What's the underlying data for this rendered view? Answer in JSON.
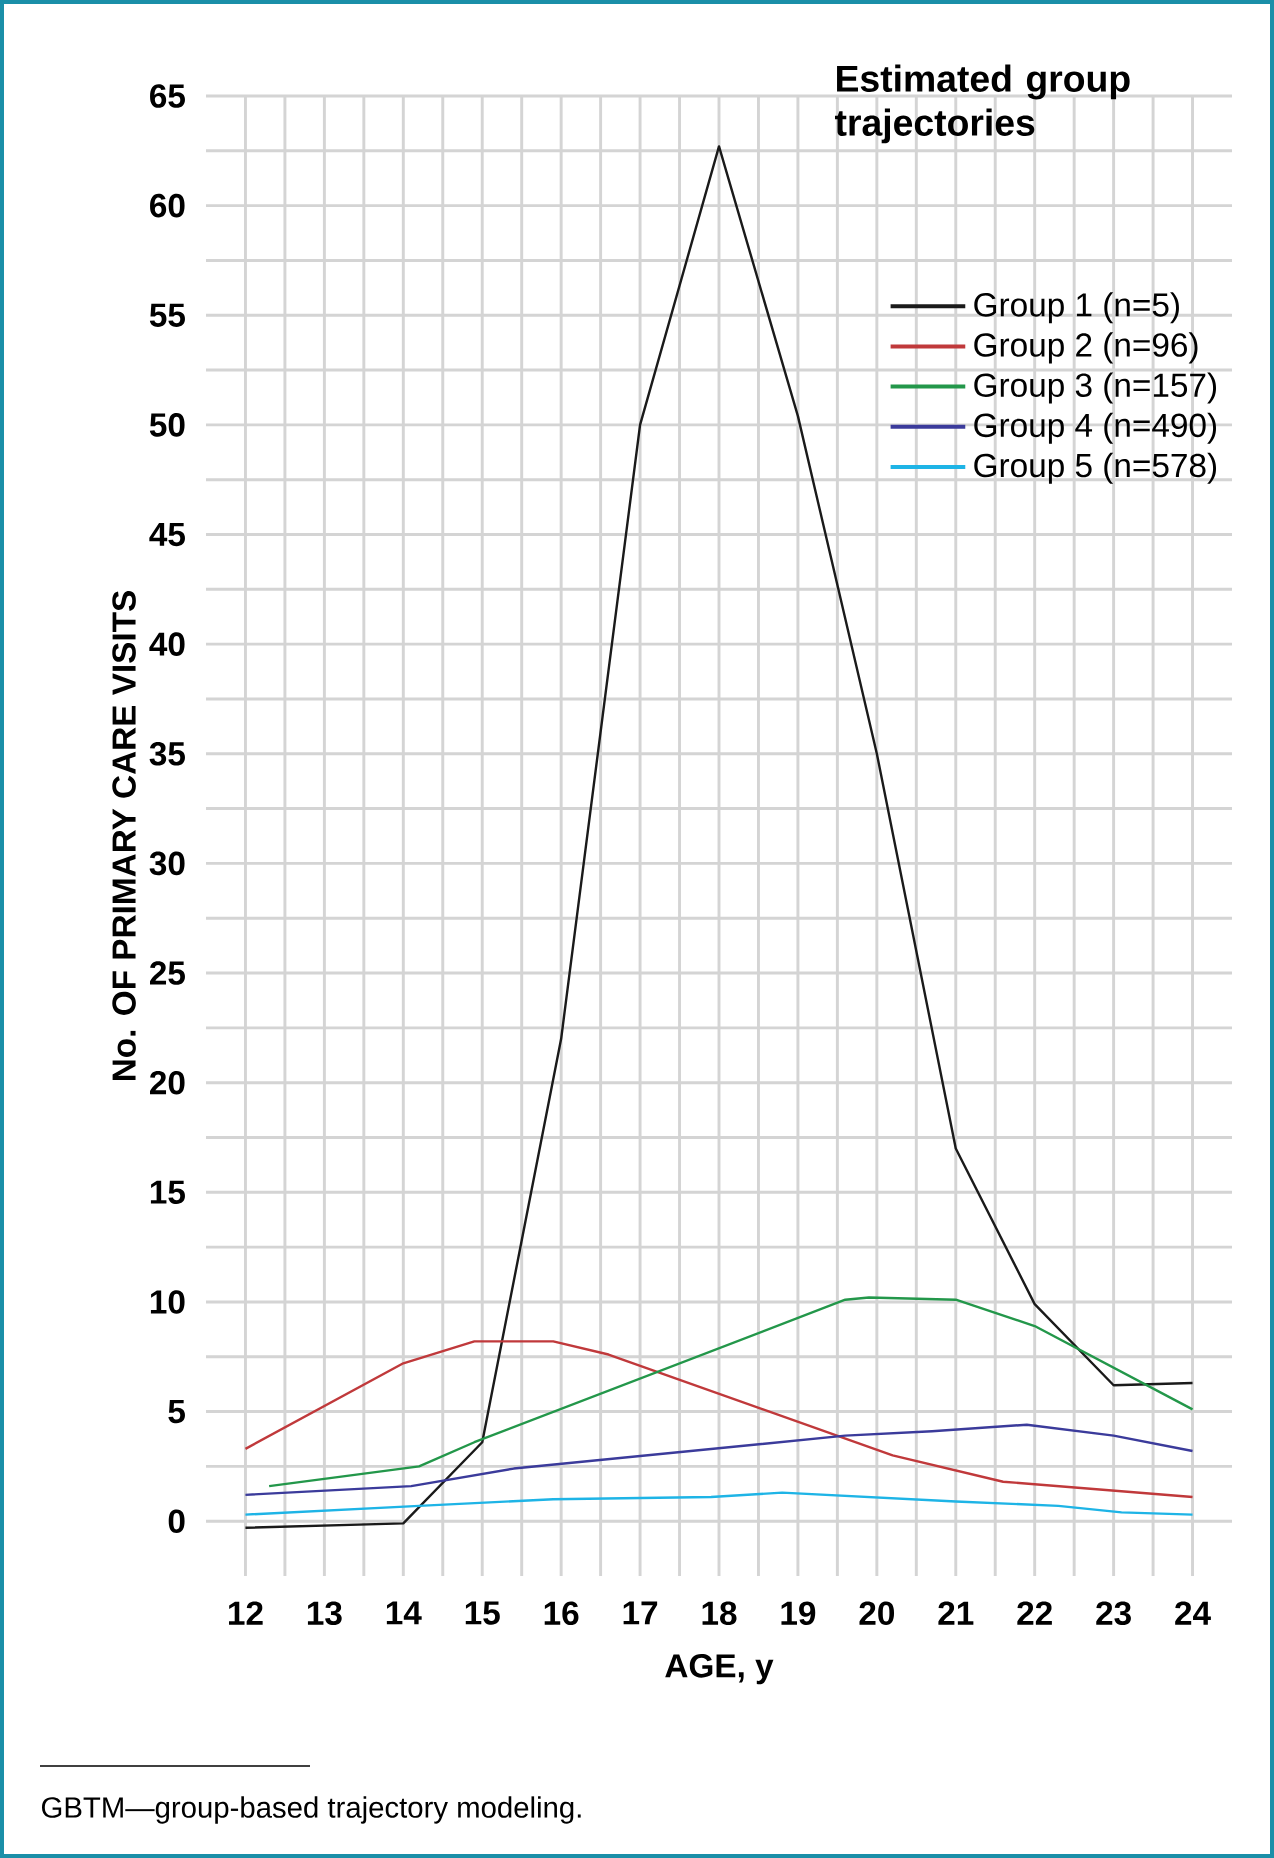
{
  "chart_data": {
    "type": "line",
    "xlabel": "AGE, y",
    "ylabel": "No. OF PRIMARY CARE VISITS",
    "legend_title": "Estimated group trajectories",
    "annotations": [
      "GBTM—group-based trajectory modeling."
    ],
    "xlim": [
      11.5,
      24.5
    ],
    "ylim": [
      -2.5,
      65
    ],
    "xticks": [
      12,
      13,
      14,
      15,
      16,
      17,
      18,
      19,
      20,
      21,
      22,
      23,
      24
    ],
    "yticks": [
      0,
      5,
      10,
      15,
      20,
      25,
      30,
      35,
      40,
      45,
      50,
      55,
      60,
      65
    ],
    "grid": true,
    "legend": "top right",
    "marker": "none",
    "line_style": "solid",
    "series": [
      {
        "name": "Group 1 (n=5)",
        "color": "#1a1a1a",
        "x": [
          12,
          14,
          15,
          16,
          17,
          18,
          19,
          20,
          21,
          22,
          23,
          24
        ],
        "values": [
          -0.3,
          -0.1,
          3.6,
          22,
          50,
          62.7,
          50.4,
          35,
          17,
          9.9,
          6.2,
          6.3
        ]
      },
      {
        "name": "Group 2 (n=96)",
        "color": "#c0393b",
        "x": [
          12,
          14,
          14.9,
          15.9,
          16.6,
          20.2,
          21.6,
          24
        ],
        "values": [
          3.3,
          7.2,
          8.2,
          8.2,
          7.6,
          3.0,
          1.8,
          1.1
        ]
      },
      {
        "name": "Group 3 (n=157)",
        "color": "#23974a",
        "x": [
          12.3,
          14.2,
          14.9,
          19.6,
          19.9,
          21.0,
          22.0,
          24
        ],
        "values": [
          1.6,
          2.5,
          3.6,
          10.1,
          10.2,
          10.1,
          8.9,
          5.1
        ]
      },
      {
        "name": "Group 4 (n=490)",
        "color": "#3b3b9b",
        "x": [
          12,
          14.1,
          15.4,
          19.6,
          20.7,
          21.9,
          23.0,
          24
        ],
        "values": [
          1.2,
          1.6,
          2.4,
          3.9,
          4.1,
          4.4,
          3.9,
          3.2
        ]
      },
      {
        "name": "Group 5 (n=578)",
        "color": "#1eb4e6",
        "x": [
          12,
          14.2,
          15.9,
          17.9,
          18.8,
          21.0,
          22.3,
          23.1,
          24
        ],
        "values": [
          0.3,
          0.7,
          1.0,
          1.1,
          1.3,
          0.9,
          0.7,
          0.4,
          0.3
        ]
      }
    ]
  }
}
